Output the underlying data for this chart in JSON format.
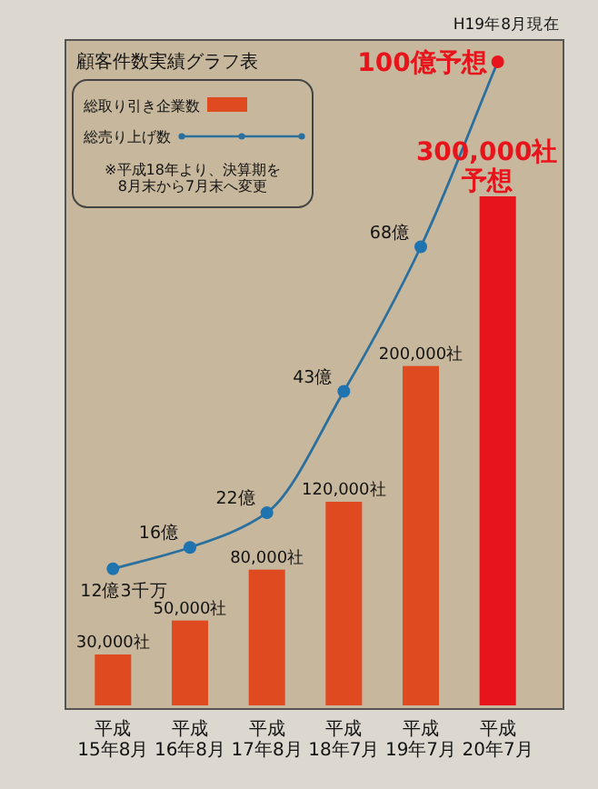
{
  "chart_data": {
    "type": "bar",
    "title": "顧客件数実績グラフ表",
    "annotations": [
      "H19年8月現在",
      "※平成18年より、決算期を\n8月末から7月末へ変更"
    ],
    "legend": "top left",
    "categories": [
      "平成\n15年8月",
      "平成\n16年8月",
      "平成\n17年8月",
      "平成\n18年7月",
      "平成\n19年7月",
      "平成\n20年7月"
    ],
    "series": [
      {
        "name": "総取り引き企業数",
        "color": "#e04a20",
        "colors": [
          "#e04a20",
          "#e04a20",
          "#e04a20",
          "#e04a20",
          "#e04a20",
          "#e8141c"
        ],
        "values": [
          30000,
          50000,
          80000,
          120000,
          200000,
          300000
        ],
        "value_labels": [
          "30,000社",
          "50,000社",
          "80,000社",
          "120,000社",
          "200,000社",
          "300,000社予想"
        ]
      },
      {
        "name": "総売り上げ数",
        "type": "line",
        "axis": "y2",
        "marker": "circle",
        "color": "#2a6f9e",
        "colors": [
          "#1f74b0",
          "#1f74b0",
          "#1f74b0",
          "#1f74b0",
          "#1f74b0",
          "#e8141c"
        ],
        "values": [
          12.3,
          16,
          22,
          43,
          68,
          100
        ],
        "value_labels": [
          "12億3千万",
          "16億",
          "22億",
          "43億",
          "68億",
          "100億予想"
        ]
      }
    ]
  }
}
